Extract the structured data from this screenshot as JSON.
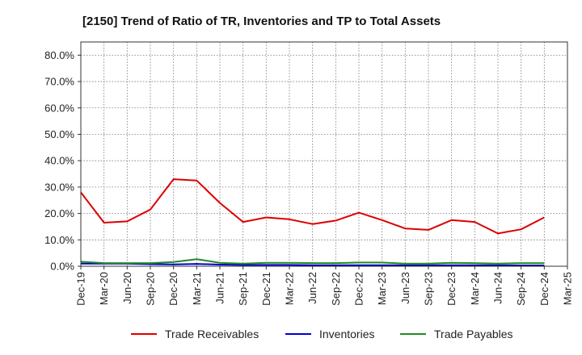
{
  "chart_data": {
    "type": "line",
    "title": "[2150]  Trend of Ratio of TR, Inventories and TP to Total Assets",
    "xlabel": "",
    "ylabel": "",
    "ylim": [
      0,
      0.85
    ],
    "y_ticks": [
      0.0,
      0.1,
      0.2,
      0.3,
      0.4,
      0.5,
      0.6,
      0.7,
      0.8
    ],
    "y_tick_labels": [
      "0.0%",
      "10.0%",
      "20.0%",
      "30.0%",
      "40.0%",
      "50.0%",
      "60.0%",
      "70.0%",
      "80.0%"
    ],
    "categories": [
      "Dec-19",
      "Mar-20",
      "Jun-20",
      "Sep-20",
      "Dec-20",
      "Mar-21",
      "Jun-21",
      "Sep-21",
      "Dec-21",
      "Mar-22",
      "Jun-22",
      "Sep-22",
      "Dec-22",
      "Mar-23",
      "Jun-23",
      "Sep-23",
      "Dec-23",
      "Mar-24",
      "Jun-24",
      "Sep-24",
      "Dec-24",
      "Mar-25"
    ],
    "grid": true,
    "legend_position": "bottom",
    "series": [
      {
        "name": "Trade Receivables",
        "color": "#dd0000",
        "values": [
          0.28,
          0.165,
          0.17,
          0.215,
          0.33,
          0.325,
          0.24,
          0.168,
          0.185,
          0.178,
          0.16,
          0.173,
          0.203,
          0.175,
          0.143,
          0.138,
          0.175,
          0.168,
          0.124,
          0.14,
          0.185,
          null
        ]
      },
      {
        "name": "Inventories",
        "color": "#0000cc",
        "values": [
          0.01,
          0.01,
          0.01,
          0.008,
          0.007,
          0.009,
          0.006,
          0.005,
          0.005,
          0.005,
          0.004,
          0.004,
          0.004,
          0.004,
          0.004,
          0.004,
          0.004,
          0.004,
          0.004,
          0.003,
          0.003,
          null
        ]
      },
      {
        "name": "Trade Payables",
        "color": "#228b22",
        "values": [
          0.017,
          0.012,
          0.012,
          0.012,
          0.016,
          0.027,
          0.013,
          0.01,
          0.013,
          0.013,
          0.012,
          0.012,
          0.014,
          0.014,
          0.01,
          0.01,
          0.013,
          0.012,
          0.01,
          0.012,
          0.012,
          null
        ]
      }
    ]
  }
}
